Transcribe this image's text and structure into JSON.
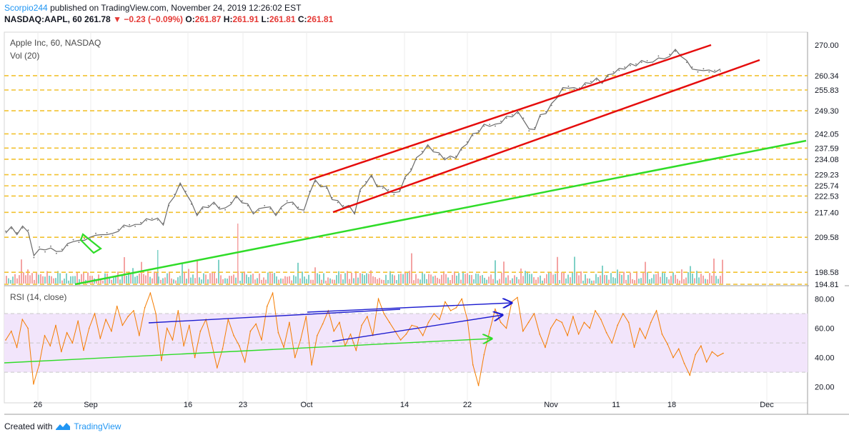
{
  "header": {
    "author": "Scorpio244",
    "published": "published on TradingView.com, November 24, 2019 12:26:02 EST",
    "symbol": "NASDAQ:AAPL, 60",
    "last": "261.78",
    "change": "−0.23 (−0.09%)",
    "o_label": "O:",
    "o_val": "261.87",
    "h_label": "H:",
    "h_val": "261.91",
    "l_label": "L:",
    "l_val": "261.81",
    "c_label": "C:",
    "c_val": "261.81"
  },
  "footer": {
    "created_with": "Created with",
    "brand": "TradingView"
  },
  "chart_data": [
    {
      "type": "line",
      "title": "Apple Inc, 60, NASDAQ",
      "subtitle": "Vol (20)",
      "x_tick_labels": [
        "26",
        "Sep",
        "16",
        "23",
        "Oct",
        "14",
        "22",
        "Nov",
        "11",
        "18",
        "Dec"
      ],
      "ylim": [
        194.81,
        274
      ],
      "y_ticks": [
        270.0
      ],
      "level_lines": [
        260.34,
        255.83,
        249.3,
        242.05,
        237.59,
        234.08,
        229.23,
        225.74,
        222.53,
        217.4,
        209.58,
        198.58,
        194.81
      ],
      "series": [
        {
          "values": [
            211.5,
            212.3,
            211.0,
            212.5,
            211.8,
            203.2,
            206.5,
            205.0,
            206.8,
            204.5,
            205.8,
            207.0,
            208.8,
            208.0,
            209.2,
            209.0,
            210.8,
            209.8,
            211.0,
            210.2,
            212.0,
            212.8,
            213.5,
            213.0,
            214.2,
            214.8,
            215.5,
            215.0,
            214.0,
            219.5,
            223.0,
            226.0,
            224.0,
            220.0,
            217.0,
            218.5,
            219.5,
            220.0,
            219.0,
            218.2,
            220.5,
            222.0,
            221.0,
            219.5,
            217.5,
            218.0,
            219.5,
            218.5,
            217.0,
            218.5,
            221.0,
            220.0,
            219.0,
            217.5,
            224.0,
            227.0,
            226.0,
            225.0,
            222.0,
            220.5,
            219.5,
            219.0,
            217.5,
            224.0,
            227.0,
            228.5,
            226.0,
            225.0,
            224.5,
            223.0,
            224.5,
            228.0,
            231.0,
            234.0,
            236.5,
            238.0,
            237.0,
            235.5,
            234.5,
            234.5,
            235.0,
            237.0,
            239.5,
            241.5,
            243.0,
            244.5,
            245.0,
            244.5,
            246.0,
            247.0,
            248.0,
            248.5,
            247.0,
            243.0,
            244.0,
            247.5,
            249.0,
            251.0,
            254.0,
            256.0,
            257.0,
            256.0,
            256.5,
            257.5,
            258.5,
            259.0,
            258.5,
            260.0,
            261.5,
            262.0,
            263.0,
            263.5,
            264.0,
            264.5,
            265.0,
            264.0,
            266.5,
            265.0,
            267.0,
            268.0,
            267.0,
            264.5,
            263.0,
            261.5,
            262.5,
            261.5,
            262.0,
            261.8
          ]
        }
      ],
      "trend_lines": [
        "ascending-channel-upper",
        "ascending-channel-lower",
        "long-term-support",
        "bull-flag"
      ]
    },
    {
      "type": "line",
      "title": "RSI (14, close)",
      "ylim": [
        15,
        88
      ],
      "y_ticks": [
        80.0,
        60.0,
        40.0,
        20.0
      ],
      "band": [
        30,
        70
      ],
      "series": [
        {
          "values": [
            52,
            58,
            47,
            66,
            60,
            22,
            35,
            55,
            48,
            62,
            44,
            57,
            50,
            65,
            45,
            60,
            70,
            53,
            66,
            58,
            75,
            62,
            68,
            72,
            55,
            74,
            84,
            70,
            38,
            60,
            52,
            72,
            48,
            62,
            40,
            58,
            66,
            50,
            33,
            46,
            66,
            55,
            48,
            37,
            58,
            63,
            52,
            75,
            84,
            57,
            47,
            64,
            40,
            52,
            68,
            35,
            55,
            63,
            72,
            58,
            64,
            48,
            56,
            45,
            62,
            68,
            55,
            80,
            70,
            64,
            58,
            52,
            56,
            62,
            61,
            55,
            64,
            70,
            66,
            78,
            72,
            74,
            80,
            66,
            35,
            21,
            42,
            58,
            73,
            64,
            60,
            78,
            81,
            58,
            64,
            70,
            56,
            47,
            60,
            66,
            64,
            55,
            68,
            56,
            64,
            60,
            72,
            66,
            57,
            50,
            62,
            70,
            64,
            47,
            60,
            53,
            64,
            72,
            56,
            49,
            40,
            46,
            36,
            28,
            42,
            48,
            37,
            44,
            41,
            43
          ]
        }
      ],
      "trend_lines": [
        "higher-high-line",
        "higher-high-line-2",
        "higher-low-line",
        "rising-support-line"
      ]
    }
  ],
  "colors": {
    "price": "#6b6b6b",
    "channel": "#e50c0c",
    "support": "#2fdc28",
    "level": "#f2c230",
    "rsi": "#f57c00",
    "rsi_band": "#f2e5fb",
    "rsi_divergence": "#1d1dd0",
    "last_label_bg": "#d0d0d0"
  }
}
